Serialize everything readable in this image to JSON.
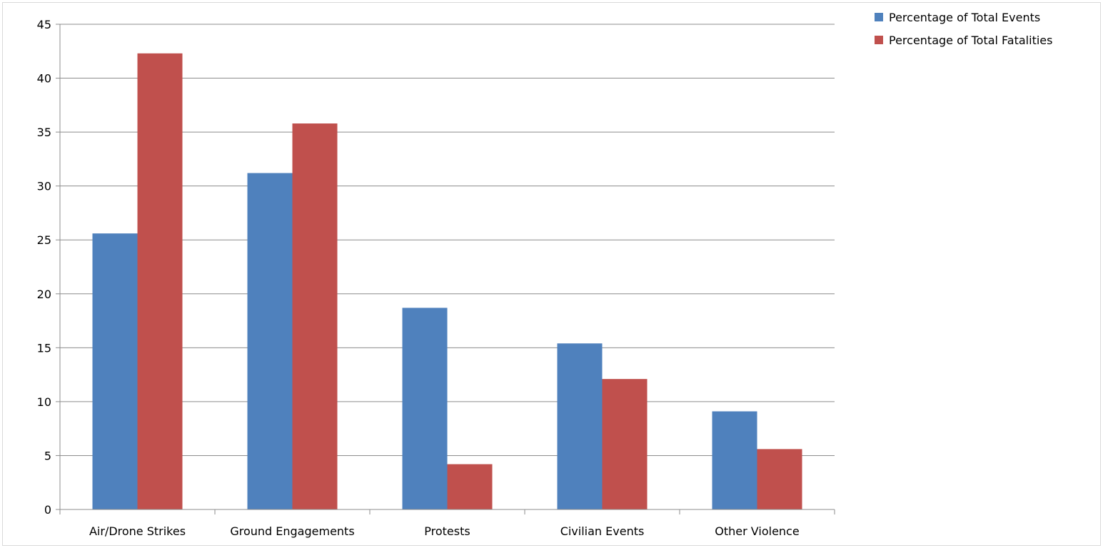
{
  "chart_data": {
    "type": "bar",
    "categories": [
      "Air/Drone Strikes",
      "Ground Engagements",
      "Protests",
      "Civilian Events",
      "Other Violence"
    ],
    "series": [
      {
        "name": "Percentage of Total Events",
        "color": "#4f81bd",
        "values": [
          25.6,
          31.2,
          18.7,
          15.4,
          9.1
        ]
      },
      {
        "name": "Percentage of Total Fatalities",
        "color": "#c0504d",
        "values": [
          42.3,
          35.8,
          4.2,
          12.1,
          5.6
        ]
      }
    ],
    "ylim": [
      0,
      45
    ],
    "yticks": [
      0,
      5,
      10,
      15,
      20,
      25,
      30,
      35,
      40,
      45
    ],
    "grid": true,
    "legend_position": "top-right"
  }
}
